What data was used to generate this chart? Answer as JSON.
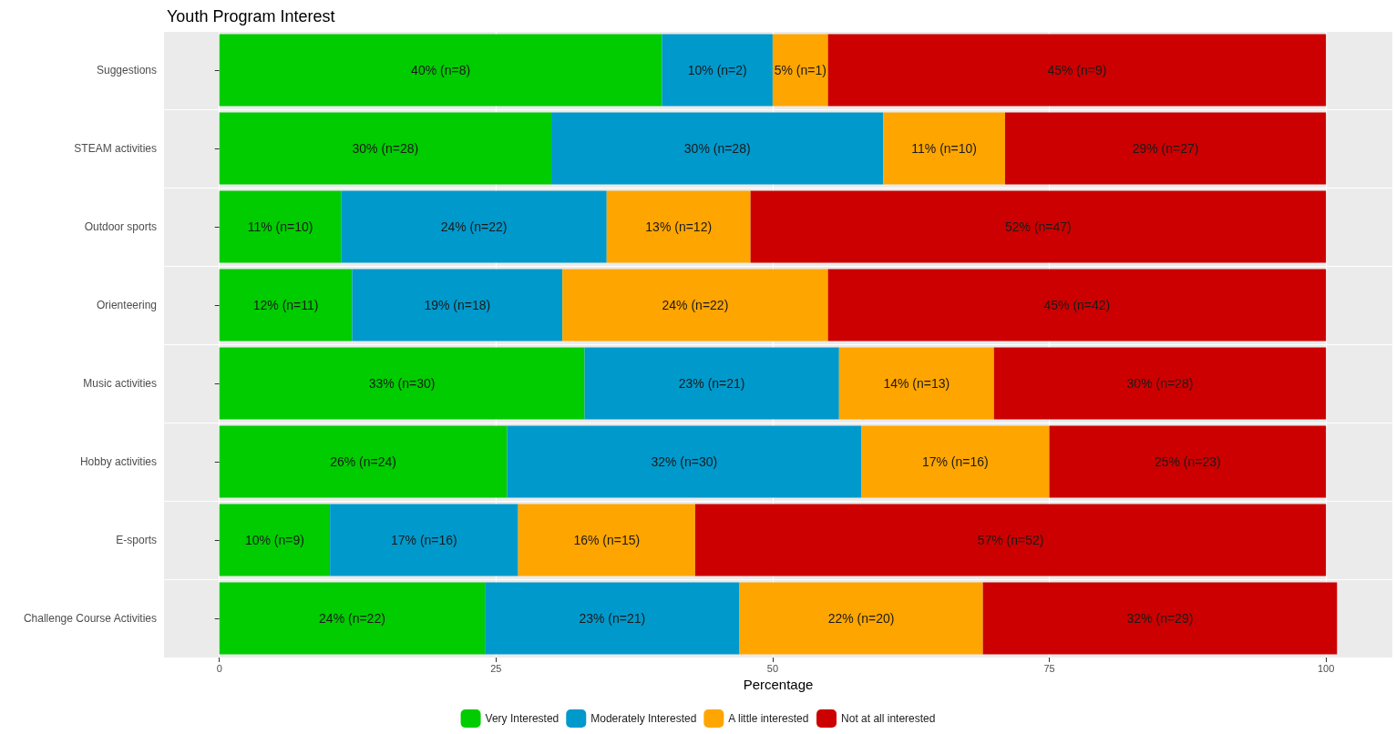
{
  "chart_data": {
    "type": "bar",
    "orientation": "horizontal",
    "stacked": true,
    "title": "Youth Program Interest",
    "xlabel": "Percentage",
    "categories": [
      "Suggestions",
      "STEAM activities",
      "Outdoor sports",
      "Orienteering",
      "Music activities",
      "Hobby activities",
      "E-sports",
      "Challenge Course Activities"
    ],
    "series": [
      {
        "name": "Very Interested",
        "color": "#00cc00",
        "values": [
          40,
          30,
          11,
          12,
          33,
          26,
          10,
          24
        ],
        "value_labels": [
          "40% (n=8)",
          "30% (n=28)",
          "11% (n=10)",
          "12% (n=11)",
          "33% (n=30)",
          "26% (n=24)",
          "10% (n=9)",
          "24% (n=22)"
        ]
      },
      {
        "name": "Moderately Interested",
        "color": "#0099cc",
        "values": [
          10,
          30,
          24,
          19,
          23,
          32,
          17,
          23
        ],
        "value_labels": [
          "10% (n=2)",
          "30% (n=28)",
          "24% (n=22)",
          "19% (n=18)",
          "23% (n=21)",
          "32% (n=30)",
          "17% (n=16)",
          "23% (n=21)"
        ]
      },
      {
        "name": "A little interested",
        "color": "#ffa500",
        "values": [
          5,
          11,
          13,
          24,
          14,
          17,
          16,
          22
        ],
        "value_labels": [
          "5% (n=1)",
          "11% (n=10)",
          "13% (n=12)",
          "24% (n=22)",
          "14% (n=13)",
          "17% (n=16)",
          "16% (n=15)",
          "22% (n=20)"
        ]
      },
      {
        "name": "Not at all interested",
        "color": "#cc0000",
        "values": [
          45,
          29,
          52,
          45,
          30,
          25,
          57,
          32
        ],
        "value_labels": [
          "45% (n=9)",
          "29% (n=27)",
          "52% (n=47)",
          "45% (n=42)",
          "30% (n=28)",
          "25% (n=23)",
          "57% (n=52)",
          "32% (n=29)"
        ]
      }
    ],
    "xlim": [
      -5,
      106
    ],
    "xticks": [
      0,
      25,
      50,
      75,
      100
    ],
    "grid": true,
    "legend": "bottom"
  }
}
